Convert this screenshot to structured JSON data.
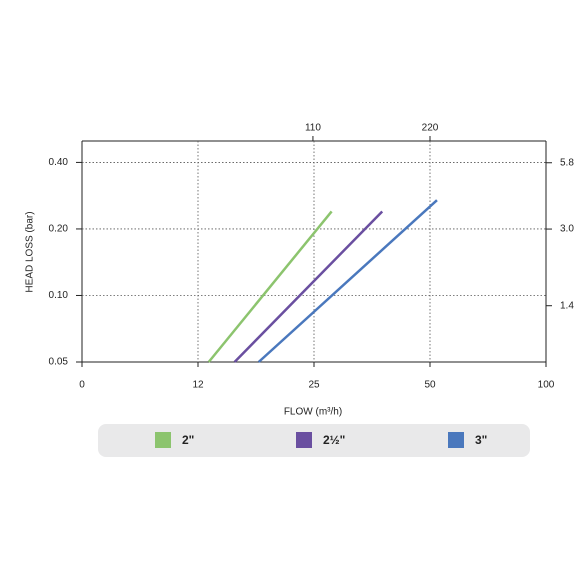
{
  "chart_data": {
    "type": "line",
    "xlabel": "FLOW (m³/h)",
    "ylabel": "HEAD LOSS (bar)",
    "xlim": [
      0,
      100
    ],
    "xticks": [
      0,
      12,
      25,
      50,
      100
    ],
    "x2lim": [
      -107,
      329
    ],
    "x2ticks": [
      110,
      220
    ],
    "ylim": [
      0.05,
      0.5
    ],
    "yticks": [
      {
        "value": 0.05,
        "label": "0.05"
      },
      {
        "value": 0.1,
        "label": "0.10"
      },
      {
        "value": 0.2,
        "label": "0.20"
      },
      {
        "value": 0.4,
        "label": "0.40"
      }
    ],
    "y2lim": [
      0.8,
      7.2
    ],
    "y2ticks": [
      1.4,
      {
        "value": 3,
        "label": "3.0"
      },
      5.8
    ],
    "log_y": true,
    "grid": true,
    "series": [
      {
        "name": "2\"",
        "color": "#8cc46e",
        "x": [
          13.2,
          28.8
        ],
        "values": [
          0.05,
          0.24
        ]
      },
      {
        "name": "2½\"",
        "color": "#6a4fa0",
        "x": [
          16.1,
          39.7
        ],
        "values": [
          0.05,
          0.24
        ]
      },
      {
        "name": "3\"",
        "color": "#4a78bd",
        "x": [
          18.8,
          53
        ],
        "values": [
          0.05,
          0.27
        ]
      }
    ]
  }
}
